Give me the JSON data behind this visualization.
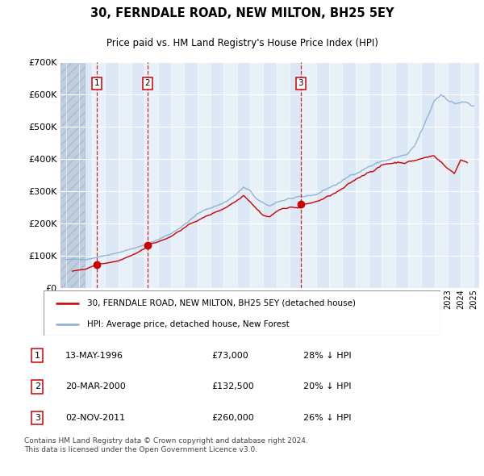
{
  "title": "30, FERNDALE ROAD, NEW MILTON, BH25 5EY",
  "subtitle": "Price paid vs. HM Land Registry's House Price Index (HPI)",
  "property_label": "30, FERNDALE ROAD, NEW MILTON, BH25 5EY (detached house)",
  "hpi_label": "HPI: Average price, detached house, New Forest",
  "footnote": "Contains HM Land Registry data © Crown copyright and database right 2024.\nThis data is licensed under the Open Government Licence v3.0.",
  "transactions": [
    {
      "num": 1,
      "date": "13-MAY-1996",
      "price": "£73,000",
      "pct": "28% ↓ HPI",
      "year": 1996.37,
      "value": 73000
    },
    {
      "num": 2,
      "date": "20-MAR-2000",
      "price": "£132,500",
      "pct": "20% ↓ HPI",
      "year": 2000.22,
      "value": 132500
    },
    {
      "num": 3,
      "date": "02-NOV-2011",
      "price": "£260,000",
      "pct": "26% ↓ HPI",
      "year": 2011.84,
      "value": 260000
    }
  ],
  "property_color": "#cc0000",
  "hpi_color": "#85afd4",
  "vline_color": "#cc0000",
  "ylim": [
    0,
    700000
  ],
  "yticks": [
    0,
    100000,
    200000,
    300000,
    400000,
    500000,
    600000,
    700000
  ],
  "xlim_start": 1993.6,
  "xlim_end": 2025.4,
  "xtick_start": 1994,
  "xtick_end": 2025,
  "hatch_region_end": 1995.42,
  "bg_color": "#dce8f5",
  "hatch_color": "#c0cfdf",
  "col_band_color": "#e8f0f8",
  "footnote_color": "#444444"
}
